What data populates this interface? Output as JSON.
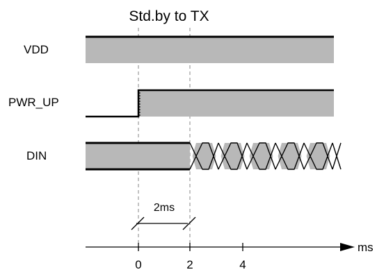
{
  "title": "Std.by to TX",
  "signals": [
    {
      "name": "VDD"
    },
    {
      "name": "PWR_UP"
    },
    {
      "name": "DIN"
    }
  ],
  "interval_label": "2ms",
  "axis": {
    "unit": "ms",
    "ticks": [
      "0",
      "2",
      "4"
    ]
  },
  "colors": {
    "fill": "#b8b8b8",
    "line": "#000000",
    "guide": "#999999"
  }
}
